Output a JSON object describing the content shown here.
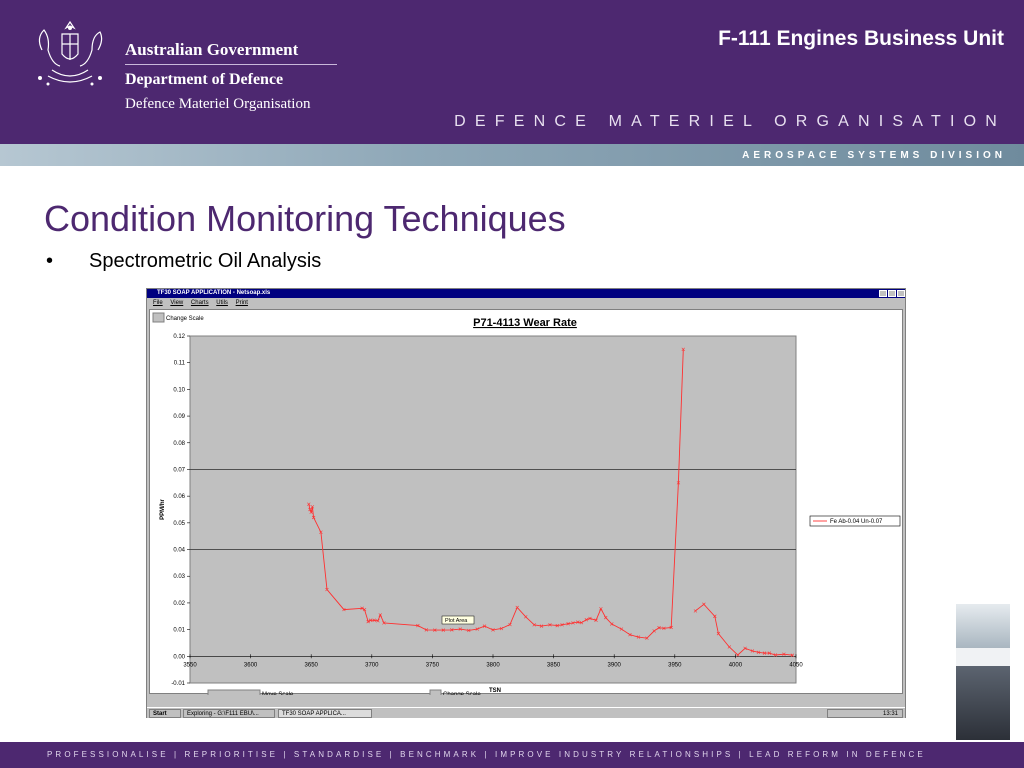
{
  "header": {
    "gov_line1": "Australian Government",
    "gov_line2": "Department of Defence",
    "gov_line3": "Defence Materiel Organisation",
    "business_unit": "F-111 Engines Business Unit",
    "org_banner": "DEFENCE MATERIEL ORGANISATION",
    "division": "AEROSPACE SYSTEMS DIVISION",
    "colors": {
      "brand": "#4d2870",
      "band": "#8fa8b8"
    }
  },
  "slide": {
    "title": "Condition Monitoring Techniques",
    "bullet_mark": "•",
    "bullet": "Spectrometric Oil Analysis"
  },
  "app": {
    "title": "TF30 SOAP APPLICATION - Netsoap.xls",
    "menu": [
      "File",
      "View",
      "Charts",
      "Utils",
      "Print"
    ],
    "change_scale_top": "Change Scale",
    "move_scale": "Move Scale",
    "change_scale_bottom": "Change Scale",
    "plot_area_tooltip": "Plot Area",
    "taskbar": {
      "start": "Start",
      "task1": "Exploring - G:\\F111 EBU\\...",
      "task2": "TF30 SOAP APPLICA...",
      "clock": "13:31"
    }
  },
  "chart_data": {
    "type": "line",
    "title": "P71-4113 Wear Rate",
    "xlabel": "TSN",
    "ylabel": "PPM/hr",
    "xlim": [
      3550,
      4050
    ],
    "ylim": [
      -0.01,
      0.12
    ],
    "x_ticks": [
      "3550",
      "3600",
      "3650",
      "3700",
      "3750",
      "3800",
      "3850",
      "3900",
      "3950",
      "4000",
      "4050"
    ],
    "y_ticks": [
      "0.12",
      "0.11",
      "0.10",
      "0.09",
      "0.08",
      "0.07",
      "0.06",
      "0.05",
      "0.04",
      "0.03",
      "0.02",
      "0.01",
      "0.00",
      "-0.01"
    ],
    "reference_lines": [
      0.07,
      0.04
    ],
    "plot_background": "#c0c0c0",
    "legend_position": "right",
    "series": [
      {
        "name": "Fe Ab-0.04 Un-0.07",
        "color": "#ff3030",
        "segments": [
          {
            "x": [
              3648,
              3649,
              3650,
              3651,
              3652,
              3658,
              3663,
              3677,
              3692,
              3694,
              3697,
              3699,
              3702,
              3705,
              3707,
              3710,
              3738,
              3745,
              3752,
              3759,
              3766,
              3773,
              3780,
              3787,
              3793,
              3800,
              3807,
              3814,
              3820,
              3827,
              3834,
              3840,
              3847,
              3853,
              3857,
              3862,
              3866,
              3870,
              3873,
              3877,
              3880,
              3885,
              3889,
              3893,
              3898,
              3906,
              3913,
              3920,
              3927,
              3933,
              3937,
              3941,
              3947,
              3953,
              3957
            ],
            "y": [
              0.057,
              0.055,
              0.054,
              0.056,
              0.052,
              0.0465,
              0.025,
              0.0175,
              0.018,
              0.0175,
              0.013,
              0.0135,
              0.0135,
              0.0133,
              0.0155,
              0.0125,
              0.0115,
              0.0099,
              0.0098,
              0.0098,
              0.0099,
              0.0102,
              0.0097,
              0.0102,
              0.0113,
              0.0099,
              0.0104,
              0.0119,
              0.0183,
              0.0148,
              0.0118,
              0.0113,
              0.0118,
              0.0115,
              0.0118,
              0.0122,
              0.0125,
              0.0128,
              0.0126,
              0.0137,
              0.0142,
              0.0135,
              0.0178,
              0.0145,
              0.0121,
              0.0102,
              0.0081,
              0.0072,
              0.0068,
              0.0095,
              0.0107,
              0.0105,
              0.0108,
              0.065,
              0.115
            ]
          },
          {
            "x": [
              3967,
              3974,
              3983,
              3986,
              3995,
              4002,
              4008,
              4014,
              4019,
              4024,
              4028,
              4033,
              4040,
              4047
            ],
            "y": [
              0.017,
              0.0195,
              0.015,
              0.0085,
              0.0035,
              0.0005,
              0.003,
              0.002,
              0.0015,
              0.0012,
              0.0012,
              0.0005,
              0.0008,
              0.0004
            ]
          }
        ]
      }
    ]
  },
  "footer": {
    "text": "PROFESSIONALISE | REPRIORITISE | STANDARDISE | BENCHMARK | IMPROVE INDUSTRY RELATIONSHIPS | LEAD REFORM IN DEFENCE"
  }
}
